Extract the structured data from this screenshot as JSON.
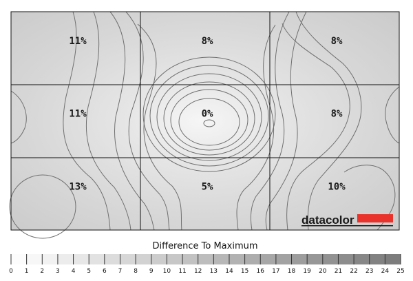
{
  "chart_data": {
    "type": "heatmap",
    "title": "",
    "legend_title": "Difference To Maximum",
    "grid": {
      "rows": 3,
      "cols": 3,
      "visible": true
    },
    "cells": [
      {
        "row": 0,
        "col": 0,
        "label": "11%",
        "value": 11
      },
      {
        "row": 0,
        "col": 1,
        "label": "8%",
        "value": 8
      },
      {
        "row": 0,
        "col": 2,
        "label": "8%",
        "value": 8
      },
      {
        "row": 1,
        "col": 0,
        "label": "11%",
        "value": 11
      },
      {
        "row": 1,
        "col": 1,
        "label": "0%",
        "value": 0
      },
      {
        "row": 1,
        "col": 2,
        "label": "8%",
        "value": 8
      },
      {
        "row": 2,
        "col": 0,
        "label": "13%",
        "value": 13
      },
      {
        "row": 2,
        "col": 1,
        "label": "5%",
        "value": 5
      },
      {
        "row": 2,
        "col": 2,
        "label": "10%",
        "value": 10
      }
    ],
    "scale": {
      "ticks": [
        "0",
        "1",
        "2",
        "3",
        "4",
        "5",
        "6",
        "7",
        "8",
        "9",
        "10",
        "11",
        "12",
        "13",
        "14",
        "15",
        "16",
        "17",
        "18",
        "19",
        "20",
        "21",
        "22",
        "23",
        "24",
        "25"
      ],
      "min": 0,
      "max": 25,
      "color_min": "#ffffff",
      "color_max": "#7a7a7a"
    }
  },
  "brand": {
    "name": "datacolor",
    "color": "#e8322b"
  }
}
